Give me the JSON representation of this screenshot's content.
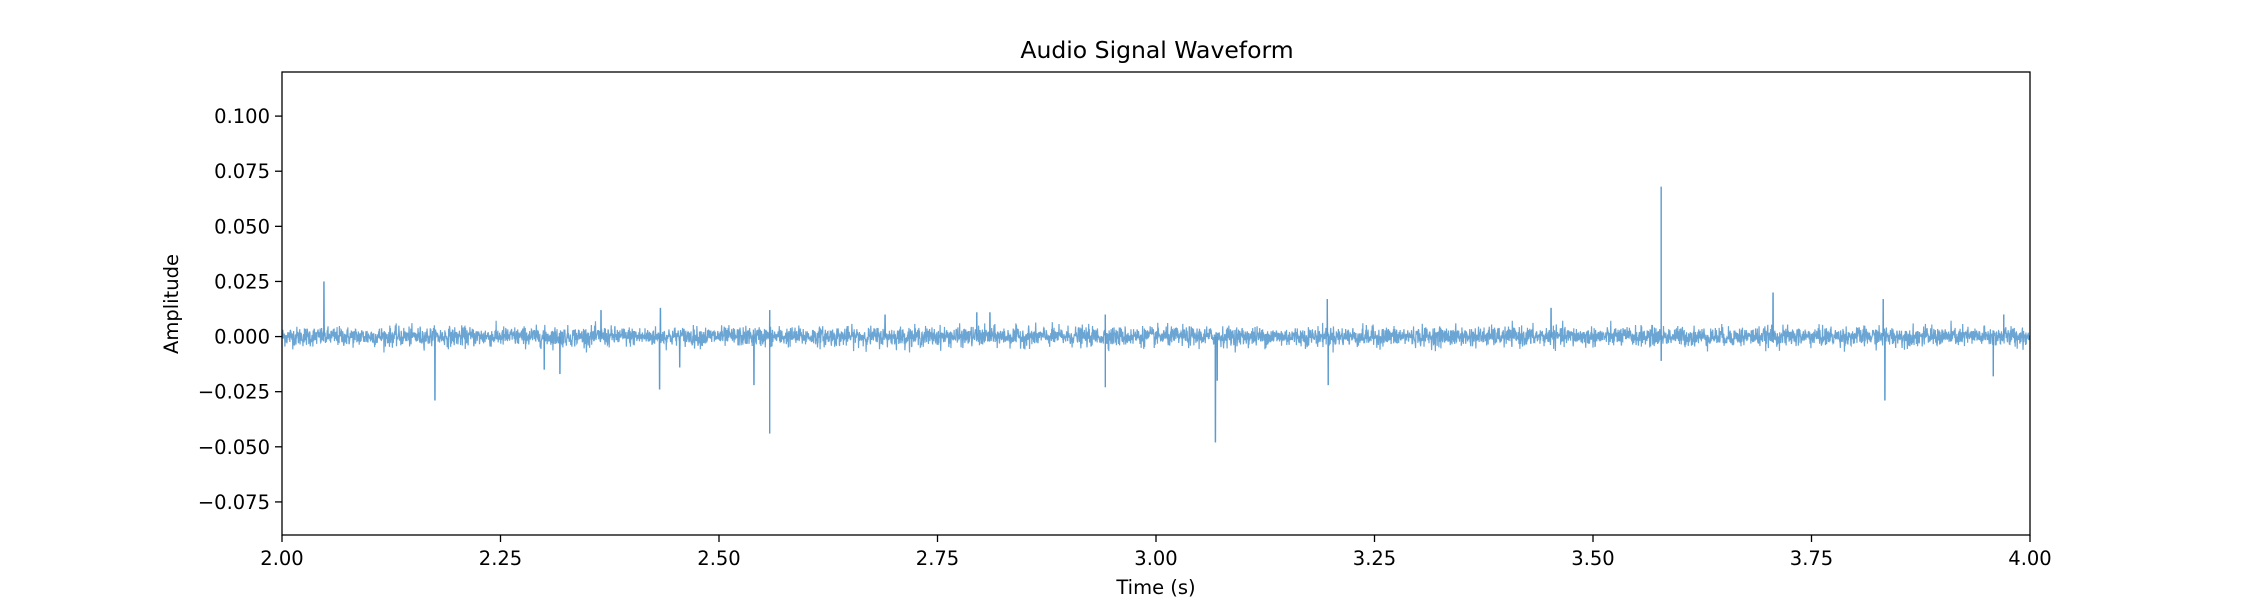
{
  "chart_data": {
    "type": "line",
    "title": "Audio Signal Waveform",
    "xlabel": "Time (s)",
    "ylabel": "Amplitude",
    "xlim": [
      2.0,
      4.0
    ],
    "ylim": [
      -0.09,
      0.12
    ],
    "x_ticks": [
      2.0,
      2.25,
      2.5,
      2.75,
      3.0,
      3.25,
      3.5,
      3.75,
      4.0
    ],
    "x_tick_labels": [
      "2.00",
      "2.25",
      "2.50",
      "2.75",
      "3.00",
      "3.25",
      "3.50",
      "3.75",
      "4.00"
    ],
    "y_ticks": [
      0.1,
      0.075,
      0.05,
      0.025,
      0.0,
      -0.025,
      -0.05,
      -0.075
    ],
    "y_tick_labels": [
      "0.100",
      "0.075",
      "0.050",
      "0.025",
      "0.000",
      "−0.025",
      "−0.050",
      "−0.075"
    ],
    "grid": false,
    "series": [
      {
        "color": "#5b9bcf",
        "noise_amplitude": 0.004,
        "spikes": [
          {
            "x": 2.048,
            "y": 0.025
          },
          {
            "x": 2.175,
            "y": -0.029
          },
          {
            "x": 2.3,
            "y": -0.015
          },
          {
            "x": 2.318,
            "y": -0.017
          },
          {
            "x": 2.365,
            "y": 0.012
          },
          {
            "x": 2.432,
            "y": -0.024
          },
          {
            "x": 2.433,
            "y": 0.013
          },
          {
            "x": 2.455,
            "y": -0.014
          },
          {
            "x": 2.54,
            "y": -0.022
          },
          {
            "x": 2.558,
            "y": -0.044
          },
          {
            "x": 2.558,
            "y": 0.012
          },
          {
            "x": 2.69,
            "y": 0.01
          },
          {
            "x": 2.795,
            "y": 0.011
          },
          {
            "x": 2.81,
            "y": 0.011
          },
          {
            "x": 2.942,
            "y": -0.023
          },
          {
            "x": 2.942,
            "y": 0.01
          },
          {
            "x": 3.068,
            "y": -0.048
          },
          {
            "x": 3.07,
            "y": -0.02
          },
          {
            "x": 3.196,
            "y": 0.017
          },
          {
            "x": 3.197,
            "y": -0.022
          },
          {
            "x": 3.452,
            "y": 0.013
          },
          {
            "x": 3.578,
            "y": 0.068
          },
          {
            "x": 3.578,
            "y": -0.011
          },
          {
            "x": 3.706,
            "y": 0.02
          },
          {
            "x": 3.832,
            "y": 0.017
          },
          {
            "x": 3.834,
            "y": -0.029
          },
          {
            "x": 3.958,
            "y": -0.018
          },
          {
            "x": 3.97,
            "y": 0.01
          }
        ]
      }
    ]
  }
}
